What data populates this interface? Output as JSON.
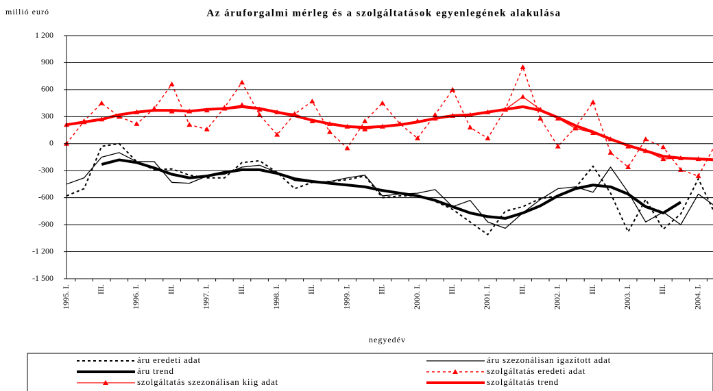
{
  "chart_data": {
    "type": "line",
    "title": "Az áruforgalmi mérleg és a szolgáltatások egyenlegének alakulása",
    "y_label": "millió euró",
    "x_label": "negyedév",
    "categories": [
      "1995. I.",
      null,
      "III.",
      null,
      "1996. I.",
      null,
      "III.",
      null,
      "1997. I.",
      null,
      "III.",
      null,
      "1998. I.",
      null,
      "III.",
      null,
      "1999. I.",
      null,
      "III.",
      null,
      "2000. I.",
      null,
      "III.",
      null,
      "2001. I.",
      null,
      "III.",
      null,
      "2002. I.",
      null,
      "III.",
      null,
      "2003. I.",
      null,
      "III.",
      null,
      "2004. I.",
      null
    ],
    "ylim": [
      -1500,
      1200
    ],
    "yticks": [
      {
        "value": -1500,
        "label": "-1 500"
      },
      {
        "value": -1200,
        "label": "-1 200"
      },
      -900,
      -600,
      -300,
      0,
      300,
      600,
      900,
      {
        "value": 1200,
        "label": "1 200"
      }
    ],
    "grid": true,
    "series": [
      {
        "name": "áru eredeti adat",
        "color": "#000000",
        "style": "dashed",
        "values": [
          -580,
          -500,
          -30,
          0,
          -200,
          -290,
          -280,
          -350,
          -380,
          -380,
          -210,
          -190,
          -320,
          -500,
          -430,
          -420,
          -400,
          -360,
          -600,
          -580,
          -580,
          -640,
          -730,
          -870,
          -1010,
          -750,
          -700,
          -610,
          -580,
          -490,
          -250,
          -550,
          -980,
          -620,
          -950,
          -780,
          -390,
          -800
        ]
      },
      {
        "name": "áru szezonálisan igazított adat",
        "color": "#000000",
        "style": "thin",
        "values": [
          -450,
          -380,
          -150,
          -100,
          -200,
          -200,
          -430,
          -440,
          -360,
          -340,
          -260,
          -240,
          -320,
          -410,
          -430,
          -420,
          -380,
          -350,
          -580,
          -560,
          -550,
          -510,
          -700,
          -630,
          -870,
          -940,
          -770,
          -620,
          -500,
          -480,
          -540,
          -260,
          -540,
          -870,
          -760,
          -900,
          -560,
          -700
        ]
      },
      {
        "name": "áru trend",
        "color": "#000000",
        "style": "thick",
        "values": [
          null,
          null,
          -230,
          -180,
          -210,
          -270,
          -340,
          -380,
          -360,
          -320,
          -290,
          -290,
          -330,
          -390,
          -420,
          -440,
          -460,
          -480,
          -520,
          -550,
          -580,
          -630,
          -700,
          -770,
          -810,
          -830,
          -770,
          -690,
          -580,
          -500,
          -460,
          -480,
          -560,
          -700,
          -770,
          -650,
          null,
          null
        ]
      },
      {
        "name": "szolgáltatás eredeti adat",
        "color": "#ff0000",
        "style": "dashed-marker",
        "values": [
          0,
          250,
          450,
          300,
          220,
          390,
          660,
          210,
          160,
          400,
          680,
          320,
          100,
          330,
          470,
          130,
          -50,
          250,
          450,
          220,
          60,
          320,
          600,
          180,
          60,
          380,
          850,
          280,
          -30,
          180,
          460,
          -100,
          -260,
          50,
          -40,
          -290,
          -360,
          0
        ]
      },
      {
        "name": "szolgáltatás szezonálisan kiig adat",
        "color": "#ff0000",
        "style": "thin-marker",
        "values": [
          210,
          240,
          270,
          310,
          350,
          380,
          360,
          360,
          370,
          390,
          430,
          380,
          350,
          330,
          250,
          220,
          190,
          160,
          190,
          220,
          250,
          280,
          310,
          320,
          350,
          380,
          520,
          380,
          280,
          170,
          120,
          50,
          -30,
          -80,
          -170,
          -160,
          -170,
          -180
        ]
      },
      {
        "name": "szolgáltatás trend",
        "color": "#ff0000",
        "style": "thick",
        "values": [
          210,
          240,
          270,
          320,
          350,
          370,
          370,
          360,
          380,
          390,
          410,
          390,
          350,
          310,
          260,
          220,
          190,
          180,
          190,
          210,
          240,
          280,
          310,
          320,
          350,
          380,
          410,
          370,
          290,
          200,
          130,
          50,
          -20,
          -80,
          -140,
          -160,
          -170,
          -180
        ]
      }
    ]
  }
}
